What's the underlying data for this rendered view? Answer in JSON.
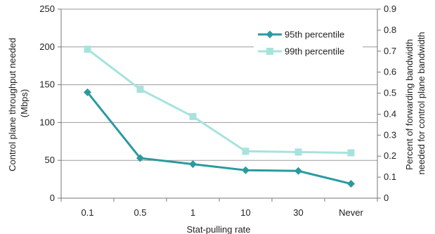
{
  "chart_data": {
    "type": "line",
    "categories": [
      "0.1",
      "0.5",
      "1",
      "10",
      "30",
      "Never"
    ],
    "series": [
      {
        "name": "95th percentile",
        "values": [
          140,
          53,
          45,
          37,
          36,
          19
        ],
        "color": "#2a9aa0",
        "marker": "diamond"
      },
      {
        "name": "99th percentile",
        "values": [
          197,
          144,
          108,
          62,
          61,
          60
        ],
        "color": "#a6e3dd",
        "marker": "square"
      }
    ],
    "xlabel": "Stat-pulling rate",
    "ylabel": "Control plane throughput needed (Mbps)",
    "ylabel_lines": [
      "Control plane throughput needed",
      "(Mbps)"
    ],
    "ylabel_right": "Percent of forwarding bandwidth needed for control plane bandwidth",
    "ylabel_right_lines": [
      "Percent of forwarding bandwidth",
      "needed for control plane bandwidth"
    ],
    "ylim": [
      0,
      250
    ],
    "yticks": [
      "0",
      "50",
      "100",
      "150",
      "200",
      "250"
    ],
    "ylim_right": [
      0,
      0.9
    ],
    "yticks_right": [
      "0",
      "0.1",
      "0.2",
      "0.3",
      "0.4",
      "0.5",
      "0.6",
      "0.7",
      "0.8",
      "0.9"
    ],
    "grid": "horizontal",
    "legend_position": "top-right"
  }
}
